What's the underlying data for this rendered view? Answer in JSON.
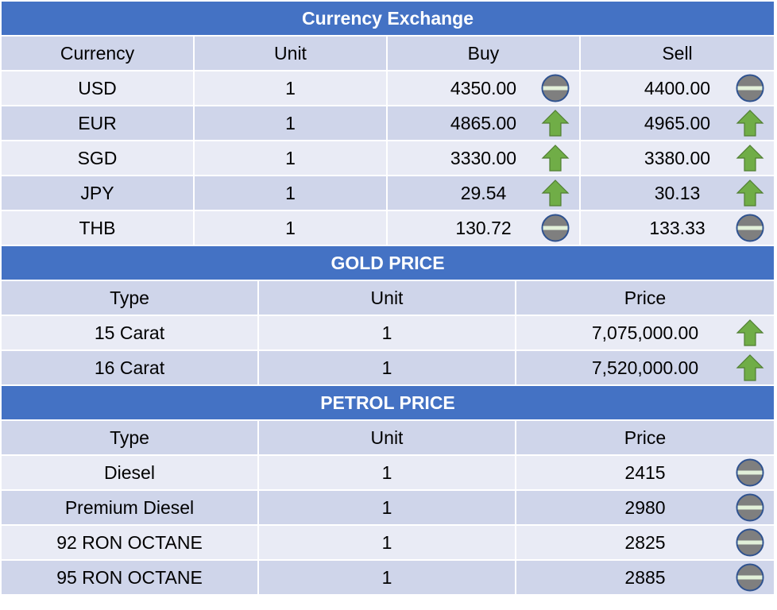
{
  "currency": {
    "title": "Currency Exchange",
    "headers": [
      "Currency",
      "Unit",
      "Buy",
      "Sell"
    ],
    "rows": [
      {
        "code": "USD",
        "unit": "1",
        "buy": "4350.00",
        "buy_trend": "no-change",
        "sell": "4400.00",
        "sell_trend": "no-change"
      },
      {
        "code": "EUR",
        "unit": "1",
        "buy": "4865.00",
        "buy_trend": "up",
        "sell": "4965.00",
        "sell_trend": "up"
      },
      {
        "code": "SGD",
        "unit": "1",
        "buy": "3330.00",
        "buy_trend": "up",
        "sell": "3380.00",
        "sell_trend": "up"
      },
      {
        "code": "JPY",
        "unit": "1",
        "buy": "29.54",
        "buy_trend": "up",
        "sell": "30.13",
        "sell_trend": "up"
      },
      {
        "code": "THB",
        "unit": "1",
        "buy": "130.72",
        "buy_trend": "no-change",
        "sell": "133.33",
        "sell_trend": "no-change"
      }
    ]
  },
  "gold": {
    "title": "GOLD PRICE",
    "headers": [
      "Type",
      "Unit",
      "Price"
    ],
    "rows": [
      {
        "type": "15 Carat",
        "unit": "1",
        "price": "7,075,000.00",
        "trend": "up"
      },
      {
        "type": "16 Carat",
        "unit": "1",
        "price": "7,520,000.00",
        "trend": "up"
      }
    ]
  },
  "petrol": {
    "title": "PETROL PRICE",
    "headers": [
      "Type",
      "Unit",
      "Price"
    ],
    "rows": [
      {
        "type": "Diesel",
        "unit": "1",
        "price": "2415",
        "trend": "no-change"
      },
      {
        "type": "Premium Diesel",
        "unit": "1",
        "price": "2980",
        "trend": "no-change"
      },
      {
        "type": "92 RON OCTANE",
        "unit": "1",
        "price": "2825",
        "trend": "no-change"
      },
      {
        "type": "95 RON OCTANE",
        "unit": "1",
        "price": "2885",
        "trend": "no-change"
      }
    ]
  },
  "icons": {
    "up": "up-arrow-icon",
    "no-change": "no-change-icon"
  },
  "colors": {
    "title_bar": "#4472c4",
    "header_row": "#cfd5ea",
    "row_light": "#e9ebf5",
    "row_dark": "#cfd5ea",
    "arrow_green": "#70ad47",
    "circle_gray": "#7f7f7f"
  }
}
